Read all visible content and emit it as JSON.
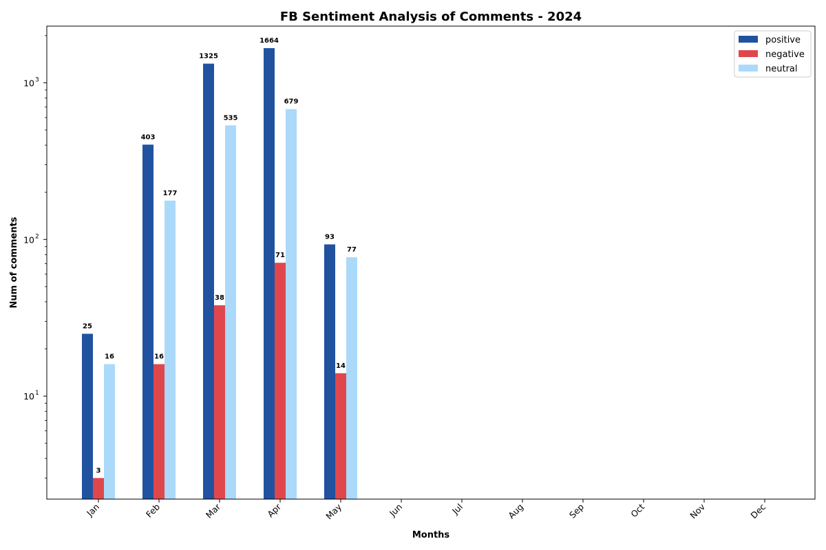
{
  "chart_data": {
    "type": "bar",
    "title": "FB Sentiment Analysis of Comments - 2024",
    "xlabel": "Months",
    "ylabel": "Num of comments",
    "yscale": "log",
    "ylim": [
      2.2,
      2300
    ],
    "yticks": [
      {
        "base": "10",
        "exp": "1"
      },
      {
        "base": "10",
        "exp": "2"
      },
      {
        "base": "10",
        "exp": "3"
      }
    ],
    "categories": [
      "Jan",
      "Feb",
      "Mar",
      "Apr",
      "May",
      "Jun",
      "Jul",
      "Aug",
      "Sep",
      "Oct",
      "Nov",
      "Dec"
    ],
    "series": [
      {
        "name": "positive",
        "color": "#2152a0",
        "values": [
          25,
          403,
          1325,
          1664,
          93,
          null,
          null,
          null,
          null,
          null,
          null,
          null
        ]
      },
      {
        "name": "negative",
        "color": "#e0474c",
        "values": [
          3,
          16,
          38,
          71,
          14,
          null,
          null,
          null,
          null,
          null,
          null,
          null
        ]
      },
      {
        "name": "neutral",
        "color": "#abd9fa",
        "values": [
          16,
          177,
          535,
          679,
          77,
          null,
          null,
          null,
          null,
          null,
          null,
          null
        ]
      }
    ],
    "legend": "upper right",
    "grid": false
  }
}
